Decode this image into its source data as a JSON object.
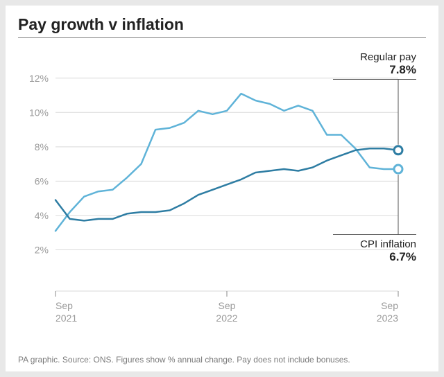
{
  "title": "Pay growth v inflation",
  "source": "PA graphic. Source: ONS. Figures show % annual change. Pay does not include bonuses.",
  "chart": {
    "type": "line",
    "background_color": "#ffffff",
    "grid_color": "#d9d9d9",
    "axis_color": "#888888",
    "label_color": "#9a9a9a",
    "label_fontsize": 14,
    "title_fontsize": 23,
    "title_weight": 700,
    "ylim": [
      0,
      13
    ],
    "yticks": [
      2,
      4,
      6,
      8,
      10,
      12
    ],
    "ytick_labels": [
      "2%",
      "4%",
      "6%",
      "8%",
      "10%",
      "12%"
    ],
    "xlim": [
      0,
      24
    ],
    "xticks": [
      0,
      12,
      24
    ],
    "xtick_labels": [
      "Sep\n2021",
      "Sep\n2022",
      "Sep\n2023"
    ],
    "line_width": 2.5,
    "marker_radius": 6,
    "marker_stroke_width": 3,
    "series": [
      {
        "name": "CPI inflation",
        "color": "#5fb3d8",
        "end_marker_fill": "#ffffff",
        "values": [
          3.1,
          4.2,
          5.1,
          5.4,
          5.5,
          6.2,
          7.0,
          9.0,
          9.1,
          9.4,
          10.1,
          9.9,
          10.1,
          11.1,
          10.7,
          10.5,
          10.1,
          10.4,
          10.1,
          8.7,
          8.7,
          7.9,
          6.8,
          6.7,
          6.7
        ],
        "callout_label": "CPI inflation",
        "callout_value": "6.7%"
      },
      {
        "name": "Regular pay",
        "color": "#2e7da3",
        "end_marker_fill": "#ffffff",
        "values": [
          4.9,
          3.8,
          3.7,
          3.8,
          3.8,
          4.1,
          4.2,
          4.2,
          4.3,
          4.7,
          5.2,
          5.5,
          5.8,
          6.1,
          6.5,
          6.6,
          6.7,
          6.6,
          6.8,
          7.2,
          7.5,
          7.8,
          7.9,
          7.9,
          7.8
        ],
        "callout_label": "Regular pay",
        "callout_value": "7.8%"
      }
    ]
  }
}
